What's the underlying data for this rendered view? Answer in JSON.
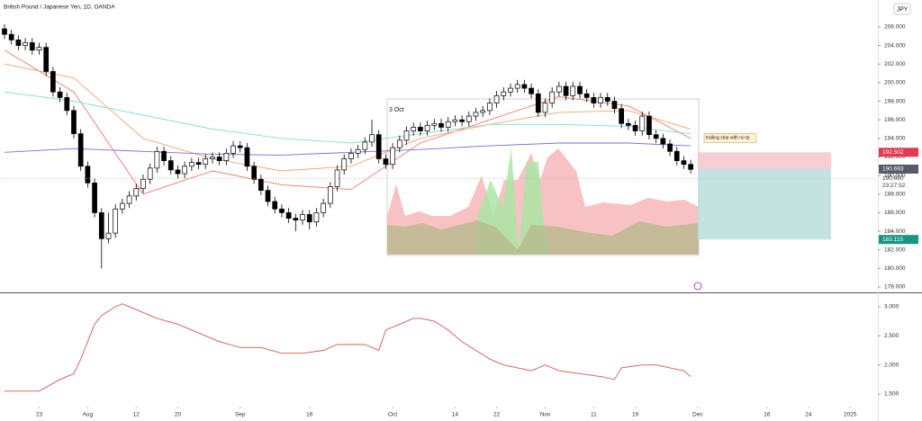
{
  "chart_data": [
    {
      "type": "candlestick",
      "title": "British Pound / Japanese Yen, 1D, OANDA",
      "currency": "JPY",
      "up_color": "#ffffff",
      "down_color": "#000000",
      "wick_color": "#000000",
      "open": [
        205.8,
        205.2,
        204.6,
        204.0,
        204.3,
        203.5,
        203.8,
        201.2,
        199.0,
        198.4,
        197.0,
        194.5,
        191.0,
        189.2,
        186.0,
        183.2,
        183.8,
        186.4,
        187.0,
        187.8,
        188.6,
        189.6,
        190.8,
        192.6,
        191.6,
        190.6,
        190.2,
        191.0,
        191.4,
        191.2,
        191.8,
        192.0,
        191.6,
        192.4,
        193.2,
        193.0,
        191.0,
        189.6,
        188.4,
        187.2,
        186.4,
        186.0,
        185.4,
        185.2,
        185.8,
        185.0,
        186.0,
        187.0,
        188.8,
        190.6,
        191.8,
        192.4,
        192.8,
        193.6,
        194.4,
        191.8,
        191.2,
        193.0,
        193.8,
        194.8,
        195.2,
        194.8,
        195.4,
        195.6,
        195.2,
        195.8,
        196.0,
        195.8,
        196.4,
        196.8,
        197.0,
        197.8,
        198.6,
        199.0,
        199.4,
        199.8,
        199.4,
        198.8,
        196.8,
        197.8,
        199.0,
        199.6,
        198.6,
        199.6,
        198.8,
        198.4,
        197.8,
        198.4,
        198.0,
        197.2,
        195.6,
        195.4,
        194.8,
        196.4,
        194.4,
        194.0,
        193.4,
        192.6,
        191.6,
        191.2
      ],
      "high": [
        206.3,
        205.7,
        205.1,
        204.8,
        204.8,
        204.3,
        204.3,
        201.7,
        199.5,
        198.9,
        197.5,
        195.0,
        191.5,
        189.7,
        186.5,
        186.0,
        186.9,
        187.5,
        188.3,
        189.1,
        190.1,
        191.3,
        193.1,
        193.1,
        192.1,
        191.1,
        191.5,
        191.9,
        191.9,
        192.3,
        192.5,
        192.5,
        192.9,
        193.7,
        193.7,
        193.5,
        191.5,
        190.1,
        188.9,
        187.7,
        186.9,
        186.5,
        185.9,
        186.3,
        186.3,
        186.5,
        187.5,
        189.3,
        191.1,
        192.3,
        192.9,
        193.3,
        194.1,
        196.0,
        194.9,
        192.3,
        193.5,
        194.3,
        195.3,
        195.7,
        195.7,
        195.9,
        196.1,
        196.1,
        196.3,
        196.5,
        196.5,
        196.9,
        197.3,
        197.5,
        198.3,
        199.1,
        199.5,
        199.9,
        200.3,
        200.3,
        199.9,
        199.3,
        198.3,
        199.5,
        200.1,
        200.1,
        200.1,
        200.1,
        199.3,
        198.9,
        198.9,
        198.9,
        198.5,
        197.7,
        196.1,
        195.9,
        196.9,
        196.9,
        194.9,
        194.5,
        193.9,
        193.1,
        192.1,
        191.7
      ],
      "low": [
        204.7,
        204.1,
        203.5,
        203.5,
        203.0,
        203.0,
        200.7,
        198.5,
        197.9,
        196.5,
        194.0,
        190.5,
        188.7,
        185.5,
        180.0,
        182.7,
        183.3,
        185.9,
        186.5,
        187.3,
        188.1,
        189.1,
        190.3,
        191.1,
        190.1,
        189.7,
        189.7,
        190.5,
        190.7,
        190.7,
        191.3,
        191.1,
        191.1,
        191.9,
        192.5,
        190.5,
        189.1,
        187.9,
        186.7,
        185.9,
        185.5,
        184.9,
        184.0,
        184.7,
        184.2,
        184.5,
        185.5,
        186.5,
        188.3,
        190.1,
        191.3,
        191.9,
        192.3,
        193.1,
        191.3,
        190.7,
        190.7,
        192.5,
        193.3,
        194.3,
        194.3,
        194.3,
        194.9,
        194.7,
        194.7,
        195.3,
        195.3,
        195.3,
        195.9,
        196.3,
        196.5,
        197.3,
        198.1,
        198.5,
        198.9,
        198.9,
        198.3,
        196.3,
        196.3,
        197.3,
        198.5,
        198.1,
        198.1,
        198.3,
        197.9,
        197.3,
        197.3,
        197.5,
        196.7,
        195.1,
        194.9,
        194.3,
        194.3,
        193.9,
        193.5,
        192.9,
        192.1,
        191.1,
        190.7,
        190.2
      ],
      "close": [
        205.2,
        204.6,
        204.0,
        204.3,
        203.5,
        203.8,
        201.2,
        199.0,
        198.4,
        197.0,
        194.5,
        191.0,
        189.2,
        186.0,
        183.2,
        183.8,
        186.4,
        187.0,
        187.8,
        188.6,
        189.6,
        190.8,
        192.6,
        191.6,
        190.6,
        190.2,
        191.0,
        191.4,
        191.2,
        191.8,
        192.0,
        191.6,
        192.4,
        193.2,
        193.0,
        191.0,
        189.6,
        188.4,
        187.2,
        186.4,
        186.0,
        185.4,
        185.2,
        185.8,
        185.0,
        186.0,
        187.0,
        188.8,
        190.6,
        191.8,
        192.4,
        192.8,
        193.6,
        194.4,
        191.8,
        191.2,
        193.0,
        193.8,
        194.8,
        195.2,
        194.8,
        195.4,
        195.6,
        195.2,
        195.8,
        196.0,
        195.8,
        196.4,
        196.8,
        197.0,
        197.8,
        198.6,
        199.0,
        199.4,
        199.8,
        199.4,
        198.8,
        196.8,
        197.8,
        199.0,
        199.6,
        198.6,
        199.6,
        198.8,
        198.4,
        197.8,
        198.4,
        198.0,
        197.2,
        195.6,
        195.4,
        194.8,
        196.4,
        194.4,
        194.0,
        193.4,
        192.6,
        191.6,
        191.2,
        190.66
      ],
      "ma": [
        {
          "color": "#f07a6a",
          "x": [
            0,
            10,
            20,
            30,
            40,
            50,
            60,
            70,
            80,
            90,
            99
          ],
          "values": [
            203.5,
            199,
            188,
            190.5,
            189,
            188.5,
            193.5,
            196,
            198.5,
            197.5,
            194
          ]
        },
        {
          "color": "#f5a66a",
          "x": [
            0,
            10,
            20,
            30,
            40,
            50,
            60,
            70,
            80,
            90,
            99
          ],
          "values": [
            202,
            200.5,
            194,
            191.8,
            190.5,
            191,
            194,
            195.5,
            196.8,
            197,
            195
          ]
        },
        {
          "color": "#7fdcd6",
          "x": [
            0,
            10,
            20,
            30,
            40,
            50,
            60,
            70,
            80,
            90,
            99
          ],
          "values": [
            199,
            198,
            196.5,
            195,
            194,
            193.5,
            194.5,
            195.5,
            195.5,
            195.3,
            194.5
          ]
        },
        {
          "color": "#7b6fd6",
          "x": [
            0,
            10,
            20,
            30,
            40,
            50,
            60,
            70,
            80,
            90,
            99
          ],
          "values": [
            192.5,
            192.9,
            192.6,
            192.3,
            192.2,
            192.5,
            192.8,
            193.2,
            193.5,
            193.5,
            193.2
          ]
        }
      ],
      "xlim": [
        -0.65,
        126
      ],
      "xticks": [
        {
          "value": 5,
          "label": "23"
        },
        {
          "value": 12,
          "label": "Aug"
        },
        {
          "value": 19,
          "label": "12"
        },
        {
          "value": 25,
          "label": "20"
        },
        {
          "value": 34,
          "label": "Sep"
        },
        {
          "value": 44,
          "label": "16"
        },
        {
          "value": 56,
          "label": "Oct"
        },
        {
          "value": 65,
          "label": "14"
        },
        {
          "value": 71,
          "label": "22"
        },
        {
          "value": 78,
          "label": "Nov"
        },
        {
          "value": 85,
          "label": "11"
        },
        {
          "value": 91,
          "label": "19"
        },
        {
          "value": 100,
          "label": "Dec"
        },
        {
          "value": 110,
          "label": "16"
        },
        {
          "value": 116,
          "label": "24"
        },
        {
          "value": 122,
          "label": "2025"
        }
      ],
      "ylim": [
        177.42,
        208.9
      ],
      "yticks": [
        {
          "value": 178,
          "label": "178.000"
        },
        {
          "value": 180,
          "label": "180.000"
        },
        {
          "value": 182,
          "label": "182.000"
        },
        {
          "value": 184,
          "label": "184.000"
        },
        {
          "value": 186,
          "label": "186.000"
        },
        {
          "value": 188,
          "label": "188.000"
        },
        {
          "value": 190,
          "label": "190.000"
        },
        {
          "value": 192,
          "label": "192.000"
        },
        {
          "value": 194,
          "label": "194.000"
        },
        {
          "value": 196,
          "label": "196.000"
        },
        {
          "value": 198,
          "label": "198.000"
        },
        {
          "value": 200,
          "label": "200.000"
        },
        {
          "value": 202,
          "label": "202.000"
        },
        {
          "value": 204,
          "label": "204.000"
        },
        {
          "value": 206,
          "label": "206.000"
        }
      ],
      "grid": false,
      "position": {
        "stop": 192.502,
        "entry": 190.693,
        "target": 183.115,
        "stop_color": "#f4c6cb",
        "target_color": "#b8dedb"
      },
      "last_price": {
        "value": 190.66,
        "label": "190.660"
      },
      "countdown": "23:27:52",
      "annotation": "trailing stop with no tp",
      "overlay_label": "3 Oct"
    },
    {
      "type": "line",
      "color": "#d9584f",
      "x": [
        0,
        5,
        8,
        10,
        11,
        12,
        13,
        14,
        16,
        17,
        19,
        22,
        25,
        28,
        31,
        34,
        37,
        40,
        43,
        46,
        48,
        52,
        54,
        55,
        57,
        59,
        60,
        62,
        64,
        66,
        68,
        70,
        72,
        74,
        76,
        78,
        80,
        83,
        86,
        88,
        89,
        92,
        94,
        96,
        98,
        99
      ],
      "values": [
        1.55,
        1.55,
        1.75,
        1.85,
        2.1,
        2.4,
        2.7,
        2.85,
        3.0,
        3.05,
        2.95,
        2.8,
        2.7,
        2.55,
        2.4,
        2.3,
        2.3,
        2.2,
        2.2,
        2.25,
        2.35,
        2.35,
        2.25,
        2.6,
        2.7,
        2.8,
        2.8,
        2.75,
        2.6,
        2.4,
        2.25,
        2.1,
        2.0,
        1.95,
        1.9,
        2.0,
        1.9,
        1.85,
        1.8,
        1.75,
        1.95,
        2.0,
        2.0,
        1.95,
        1.9,
        1.8
      ],
      "ylim": [
        1.16,
        3.216
      ],
      "yticks": [
        {
          "value": 1.5,
          "label": "1.500"
        },
        {
          "value": 2,
          "label": "2.000"
        },
        {
          "value": 2.5,
          "label": "2.500"
        },
        {
          "value": 3,
          "label": "3.000"
        }
      ]
    }
  ]
}
